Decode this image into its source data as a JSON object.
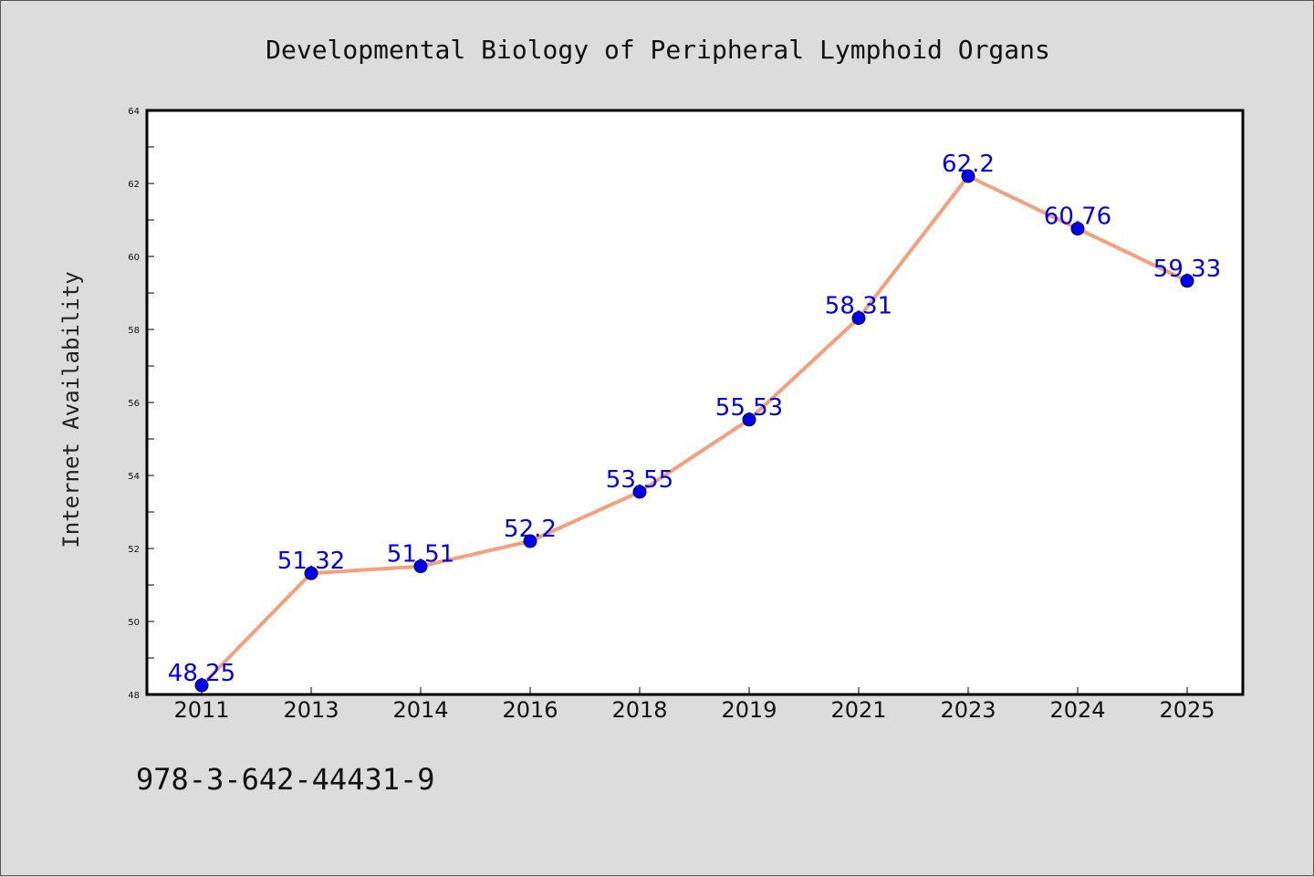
{
  "footer": {
    "isbn": "978-3-642-44431-9"
  },
  "colors": {
    "line": "#f4a07c",
    "marker": "#0000ee",
    "label": "#0000ee",
    "plot_bg": "#ffffff",
    "page_bg": "#dcdcdc"
  },
  "chart_data": {
    "type": "line",
    "title": "Developmental Biology of Peripheral Lymphoid Organs",
    "xlabel": "",
    "ylabel": "Internet Availability",
    "categories": [
      "2011",
      "2013",
      "2014",
      "2016",
      "2018",
      "2019",
      "2021",
      "2023",
      "2024",
      "2025"
    ],
    "series": [
      {
        "values": [
          48.25,
          51.32,
          51.51,
          52.2,
          53.55,
          55.53,
          58.31,
          62.2,
          60.76,
          59.33
        ],
        "labels": [
          "48.25",
          "51.32",
          "51.51",
          "52.2",
          "53.55",
          "55.53",
          "58.31",
          "62.2",
          "60.76",
          "59.33"
        ]
      }
    ],
    "ylim": [
      48,
      64
    ],
    "yticks": [
      "48",
      "50",
      "52",
      "54",
      "56",
      "58",
      "60",
      "62",
      "64"
    ],
    "grid": false,
    "legend": "none"
  }
}
